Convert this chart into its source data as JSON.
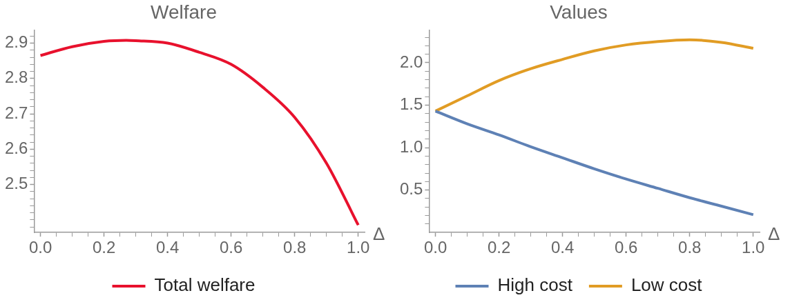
{
  "chart_data": [
    {
      "type": "line",
      "title": "Welfare",
      "xlabel": "Δ",
      "xlim": [
        -0.02,
        1.02
      ],
      "ylim": [
        2.364,
        2.937
      ],
      "xticks": [
        {
          "value": 0,
          "label": "0.0"
        },
        {
          "value": 0.05,
          "label": null
        },
        0.2,
        {
          "value": 0.1,
          "label": null
        },
        {
          "value": 0.15,
          "label": null
        },
        {
          "value": 0.25,
          "label": null
        },
        {
          "value": 0.3,
          "label": null
        },
        {
          "value": 0.35,
          "label": null
        },
        0.4,
        {
          "value": 0.45,
          "label": null
        },
        {
          "value": 0.5,
          "label": null
        },
        {
          "value": 0.55,
          "label": null
        },
        0.6,
        {
          "value": 0.65,
          "label": null
        },
        {
          "value": 0.7,
          "label": null
        },
        {
          "value": 0.75,
          "label": null
        },
        0.8,
        {
          "value": 0.85,
          "label": null
        },
        {
          "value": 0.9,
          "label": null
        },
        {
          "value": 0.95,
          "label": null
        },
        {
          "value": 1,
          "label": "1.0"
        }
      ],
      "yticks": [
        {
          "value": 2.38,
          "label": null
        },
        {
          "value": 2.4,
          "label": null
        },
        {
          "value": 2.42,
          "label": null
        },
        {
          "value": 2.44,
          "label": null
        },
        {
          "value": 2.46,
          "label": null
        },
        {
          "value": 2.48,
          "label": null
        },
        2.5,
        {
          "value": 2.52,
          "label": null
        },
        {
          "value": 2.54,
          "label": null
        },
        {
          "value": 2.56,
          "label": null
        },
        {
          "value": 2.58,
          "label": null
        },
        2.6,
        {
          "value": 2.62,
          "label": null
        },
        {
          "value": 2.64,
          "label": null
        },
        {
          "value": 2.66,
          "label": null
        },
        {
          "value": 2.68,
          "label": null
        },
        2.7,
        {
          "value": 2.72,
          "label": null
        },
        {
          "value": 2.74,
          "label": null
        },
        {
          "value": 2.76,
          "label": null
        },
        {
          "value": 2.78,
          "label": null
        },
        2.8,
        {
          "value": 2.82,
          "label": null
        },
        {
          "value": 2.84,
          "label": null
        },
        {
          "value": 2.86,
          "label": null
        },
        {
          "value": 2.88,
          "label": null
        },
        2.9,
        {
          "value": 2.92,
          "label": null
        }
      ],
      "x": [
        0,
        0.1,
        0.2,
        0.27,
        0.3,
        0.4,
        0.5,
        0.6,
        0.7,
        0.8,
        0.9,
        1.0
      ],
      "series": [
        {
          "name": "Total welfare",
          "color": "#e8112d",
          "values": [
            2.865,
            2.89,
            2.905,
            2.908,
            2.907,
            2.9,
            2.874,
            2.84,
            2.775,
            2.69,
            2.56,
            2.385
          ]
        }
      ],
      "legend": "bottom",
      "grid": false,
      "marker": "none"
    },
    {
      "type": "line",
      "title": "Values",
      "xlabel": "Δ",
      "xlim": [
        -0.02,
        1.02
      ],
      "ylim": [
        0,
        2.385
      ],
      "xticks": [
        {
          "value": 0,
          "label": "0.0"
        },
        {
          "value": 0.05,
          "label": null
        },
        {
          "value": 0.1,
          "label": null
        },
        {
          "value": 0.15,
          "label": null
        },
        0.2,
        {
          "value": 0.25,
          "label": null
        },
        {
          "value": 0.3,
          "label": null
        },
        {
          "value": 0.35,
          "label": null
        },
        0.4,
        {
          "value": 0.45,
          "label": null
        },
        {
          "value": 0.5,
          "label": null
        },
        {
          "value": 0.55,
          "label": null
        },
        0.6,
        {
          "value": 0.65,
          "label": null
        },
        {
          "value": 0.7,
          "label": null
        },
        {
          "value": 0.75,
          "label": null
        },
        0.8,
        {
          "value": 0.85,
          "label": null
        },
        {
          "value": 0.9,
          "label": null
        },
        {
          "value": 0.95,
          "label": null
        },
        {
          "value": 1,
          "label": "1.0"
        }
      ],
      "yticks": [
        {
          "value": 0.1,
          "label": null
        },
        {
          "value": 0.2,
          "label": null
        },
        {
          "value": 0.3,
          "label": null
        },
        {
          "value": 0.4,
          "label": null
        },
        0.5,
        {
          "value": 0.6,
          "label": null
        },
        {
          "value": 0.7,
          "label": null
        },
        {
          "value": 0.8,
          "label": null
        },
        {
          "value": 0.9,
          "label": null
        },
        {
          "value": 1,
          "label": "1.0"
        },
        {
          "value": 1.1,
          "label": null
        },
        {
          "value": 1.2,
          "label": null
        },
        {
          "value": 1.3,
          "label": null
        },
        {
          "value": 1.4,
          "label": null
        },
        1.5,
        {
          "value": 1.6,
          "label": null
        },
        {
          "value": 1.7,
          "label": null
        },
        {
          "value": 1.8,
          "label": null
        },
        {
          "value": 1.9,
          "label": null
        },
        {
          "value": 2,
          "label": "2.0"
        },
        {
          "value": 2.1,
          "label": null
        },
        {
          "value": 2.2,
          "label": null
        },
        {
          "value": 2.3,
          "label": null
        }
      ],
      "x": [
        0,
        0.1,
        0.2,
        0.3,
        0.4,
        0.5,
        0.6,
        0.7,
        0.8,
        0.9,
        1.0
      ],
      "series": [
        {
          "name": "High cost",
          "color": "#5e81b5",
          "values": [
            1.43,
            1.28,
            1.15,
            1.01,
            0.88,
            0.75,
            0.63,
            0.52,
            0.41,
            0.31,
            0.21
          ]
        },
        {
          "name": "Low cost",
          "color": "#e19c24",
          "values": [
            1.43,
            1.61,
            1.79,
            1.93,
            2.04,
            2.14,
            2.21,
            2.25,
            2.27,
            2.24,
            2.17
          ]
        }
      ],
      "legend": "bottom",
      "grid": false,
      "marker": "none"
    }
  ]
}
